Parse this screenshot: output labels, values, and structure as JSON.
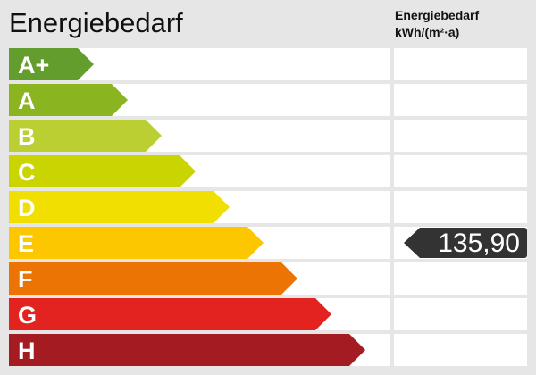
{
  "title": "Energiebedarf",
  "column_header": {
    "line1": "Energiebedarf",
    "line2": "kWh/(m²·a)"
  },
  "classes": [
    {
      "label": "A+",
      "color": "#639d2d"
    },
    {
      "label": "A",
      "color": "#8ab420"
    },
    {
      "label": "B",
      "color": "#bbcf32"
    },
    {
      "label": "C",
      "color": "#cad400"
    },
    {
      "label": "D",
      "color": "#f0df00"
    },
    {
      "label": "E",
      "color": "#fdc700"
    },
    {
      "label": "F",
      "color": "#ec7404"
    },
    {
      "label": "G",
      "color": "#e3231f"
    },
    {
      "label": "H",
      "color": "#a51b22"
    }
  ],
  "value": {
    "text": "135,90",
    "class": "E",
    "color": "#333333"
  }
}
